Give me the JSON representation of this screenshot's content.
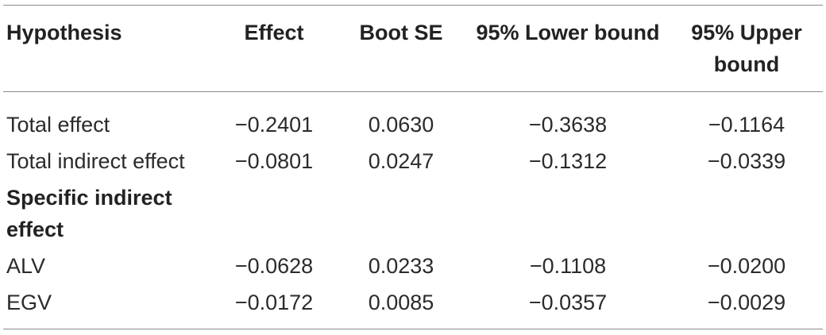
{
  "table": {
    "headers": [
      "Hypothesis",
      "Effect",
      "Boot SE",
      "95% Lower bound",
      "95% Upper bound"
    ],
    "rows_top": [
      {
        "label": "Total effect",
        "effect": "−0.2401",
        "boot_se": "0.0630",
        "lower": "−0.3638",
        "upper": "−0.1164"
      },
      {
        "label": "Total indirect effect",
        "effect": "−0.0801",
        "boot_se": "0.0247",
        "lower": "−0.1312",
        "upper": "−0.0339"
      }
    ],
    "section_label": "Specific indirect effect",
    "rows_bottom": [
      {
        "label": "ALV",
        "effect": "−0.0628",
        "boot_se": "0.0233",
        "lower": "−0.1108",
        "upper": "−0.0200"
      },
      {
        "label": "EGV",
        "effect": "−0.0172",
        "boot_se": "0.0085",
        "lower": "−0.0357",
        "upper": "−0.0029"
      }
    ]
  }
}
